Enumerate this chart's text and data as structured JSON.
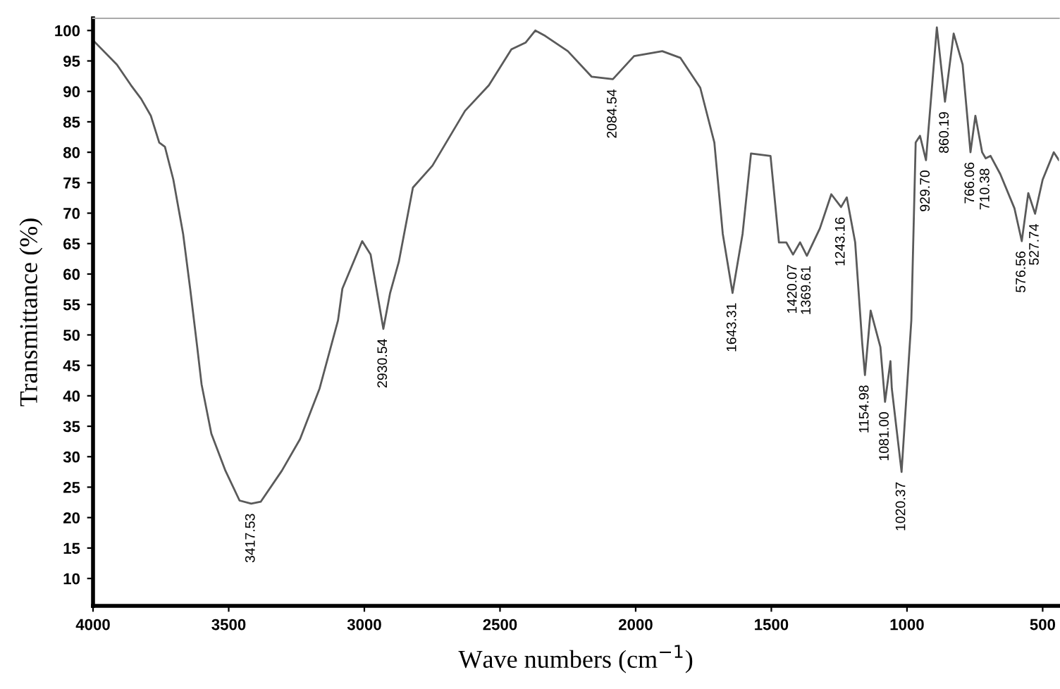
{
  "chart_data": {
    "type": "line",
    "xlabel": "Wave numbers (cm$^{−1}$)",
    "ylabel": "Transmittance (%)",
    "x": [
      4000,
      3912,
      3860,
      3823,
      3787,
      3756,
      3735,
      3704,
      3668,
      3642,
      3616,
      3600,
      3564,
      3512,
      3460,
      3417,
      3382,
      3304,
      3237,
      3165,
      3097,
      3081,
      3008,
      2977,
      2930,
      2905,
      2873,
      2821,
      2749,
      2629,
      2541,
      2458,
      2406,
      2370,
      2333,
      2250,
      2162,
      2084,
      2006,
      1902,
      1835,
      1762,
      1710,
      1679,
      1643,
      1606,
      1575,
      1503,
      1472,
      1445,
      1420,
      1394,
      1369,
      1321,
      1279,
      1243,
      1222,
      1191,
      1165,
      1155,
      1134,
      1098,
      1081,
      1061,
      1056,
      1020,
      984,
      968,
      952,
      930,
      890,
      860,
      828,
      795,
      766,
      748,
      723,
      710,
      692,
      656,
      604,
      577,
      553,
      528,
      500,
      459,
      440
    ],
    "series": [
      {
        "color": "#5a5a5a",
        "values": [
          98.4,
          94.4,
          91,
          88.8,
          86,
          81.6,
          80.9,
          75.5,
          66.6,
          57.6,
          48,
          41.9,
          33.8,
          27.7,
          22.8,
          22.3,
          22.6,
          27.7,
          32.9,
          41.2,
          52.4,
          57.6,
          65.4,
          63.2,
          51,
          56.9,
          62,
          74.2,
          77.8,
          86.8,
          91,
          96.9,
          98,
          100,
          99.1,
          96.6,
          92.4,
          92,
          95.8,
          96.6,
          95.5,
          90.6,
          81.6,
          66.6,
          56.9,
          66.6,
          79.8,
          79.4,
          65.2,
          65.2,
          63.2,
          65.2,
          63,
          67.5,
          73.1,
          71,
          72.6,
          65.2,
          48.6,
          43.4,
          54,
          48,
          39,
          45.7,
          41.2,
          27.5,
          52.4,
          81.6,
          82.7,
          78.7,
          100.5,
          88.3,
          99.5,
          94.4,
          80,
          86,
          80,
          79,
          79.4,
          76.4,
          70.8,
          65.4,
          73.3,
          69.9,
          75.5,
          80,
          78.7
        ]
      }
    ],
    "xlim": [
      4000,
      440
    ],
    "ylim": [
      5.5,
      102
    ],
    "xticks": [
      4000,
      3500,
      3000,
      2500,
      2000,
      1500,
      1000,
      500
    ],
    "yticks": [
      10,
      15,
      20,
      25,
      30,
      35,
      40,
      45,
      50,
      55,
      60,
      65,
      70,
      75,
      80,
      85,
      90,
      95,
      100
    ],
    "grid": false,
    "legend": false,
    "marker": "none",
    "line_style": "solid",
    "annotations": [
      {
        "text": "3417.53",
        "x": 3417,
        "y": 22.3
      },
      {
        "text": "2930.54",
        "x": 2930,
        "y": 51
      },
      {
        "text": "2084.54",
        "x": 2084,
        "y": 92
      },
      {
        "text": "1643.31",
        "x": 1643,
        "y": 56.9
      },
      {
        "text": "1420.07",
        "x": 1420,
        "y": 63.2
      },
      {
        "text": "1369.61",
        "x": 1369,
        "y": 63
      },
      {
        "text": "1243.16",
        "x": 1243,
        "y": 71
      },
      {
        "text": "1154.98",
        "x": 1155,
        "y": 43.4
      },
      {
        "text": "1081.00",
        "x": 1081,
        "y": 39
      },
      {
        "text": "1020.37",
        "x": 1020,
        "y": 27.5
      },
      {
        "text": "929.70",
        "x": 930,
        "y": 78.7
      },
      {
        "text": "860.19",
        "x": 860,
        "y": 88.3
      },
      {
        "text": "766.06",
        "x": 766,
        "y": 80
      },
      {
        "text": "710.38",
        "x": 710,
        "y": 79
      },
      {
        "text": "576.56",
        "x": 577,
        "y": 65.4
      },
      {
        "text": "527.74",
        "x": 528,
        "y": 69.9
      }
    ]
  }
}
